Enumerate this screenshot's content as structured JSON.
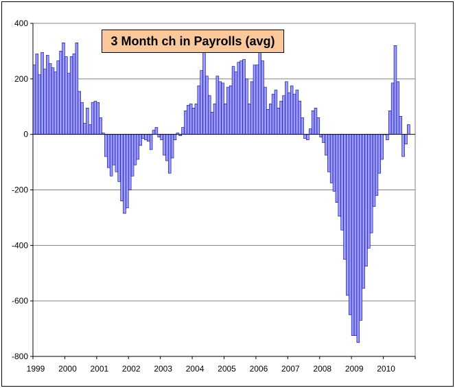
{
  "chart_data": {
    "type": "bar",
    "title": "3 Month ch in Payrolls (avg)",
    "xlabel": "",
    "ylabel": "",
    "ylim": [
      -800,
      400
    ],
    "y_ticks": [
      400,
      200,
      0,
      -200,
      -400,
      -600,
      -800
    ],
    "x_ticks": [
      "1999",
      "2000",
      "2001",
      "2002",
      "2003",
      "2004",
      "2005",
      "2006",
      "2007",
      "2008",
      "2009",
      "2010"
    ],
    "start": "1999-01",
    "frequency": "monthly",
    "grid": true,
    "legend": "none",
    "colors": {
      "bar_fill": "#9999ff",
      "bar_stroke": "#000080",
      "title_bg": "#fbc89c",
      "grid": "#808080"
    },
    "values": [
      250,
      290,
      215,
      295,
      235,
      285,
      255,
      240,
      225,
      265,
      300,
      330,
      280,
      220,
      280,
      290,
      330,
      155,
      115,
      40,
      95,
      35,
      115,
      120,
      115,
      60,
      5,
      -80,
      -120,
      -150,
      -110,
      -135,
      -170,
      -240,
      -285,
      -265,
      -200,
      -150,
      -110,
      -90,
      -40,
      -15,
      -20,
      -25,
      -55,
      15,
      25,
      -10,
      -20,
      -75,
      -95,
      -140,
      -85,
      -20,
      5,
      -5,
      25,
      85,
      105,
      110,
      95,
      110,
      175,
      230,
      300,
      210,
      140,
      80,
      110,
      210,
      190,
      185,
      110,
      170,
      175,
      245,
      225,
      260,
      265,
      270,
      200,
      110,
      190,
      250,
      250,
      300,
      265,
      170,
      90,
      110,
      145,
      160,
      95,
      120,
      140,
      190,
      150,
      175,
      145,
      160,
      120,
      60,
      -15,
      -20,
      20,
      85,
      95,
      60,
      -10,
      -30,
      -75,
      -135,
      -175,
      -205,
      -245,
      -295,
      -345,
      -450,
      -580,
      -650,
      -725,
      -725,
      -750,
      -670,
      -555,
      -475,
      -410,
      -355,
      -260,
      -220,
      -140,
      -90,
      0,
      -20,
      85,
      185,
      320,
      190,
      65,
      -80,
      -35,
      35
    ]
  }
}
